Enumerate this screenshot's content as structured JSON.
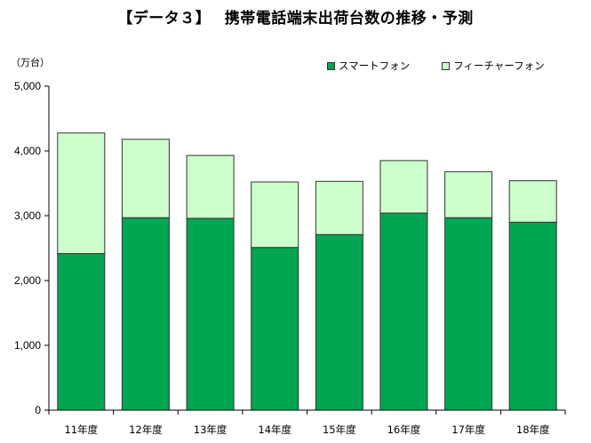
{
  "title": "【データ３】　 携帯電話端末出荷台数の推移・予測",
  "unit_label": "（万台）",
  "colors": {
    "smartphone": "#00a651",
    "feature_phone": "#ccffcc",
    "axis": "#000000",
    "bar_border": "#333333"
  },
  "chart_data": {
    "type": "bar",
    "stacked": true,
    "categories": [
      "11年度",
      "12年度",
      "13年度",
      "14年度",
      "15年度",
      "16年度",
      "17年度",
      "18年度"
    ],
    "series": [
      {
        "name": "スマートフォン",
        "values": [
          2417,
          2970,
          2960,
          2510,
          2710,
          3040,
          2970,
          2900
        ]
      },
      {
        "name": "フィーチャーフォン",
        "values": [
          1860,
          1210,
          970,
          1010,
          820,
          810,
          710,
          640
        ]
      }
    ],
    "ylim": [
      0,
      5000
    ],
    "yticks": [
      "0",
      "1,000",
      "2,000",
      "3,000",
      "4,000",
      "5,000"
    ],
    "ytick_values": [
      0,
      1000,
      2000,
      3000,
      4000,
      5000
    ],
    "grid": false,
    "legend_position": "top-right"
  }
}
